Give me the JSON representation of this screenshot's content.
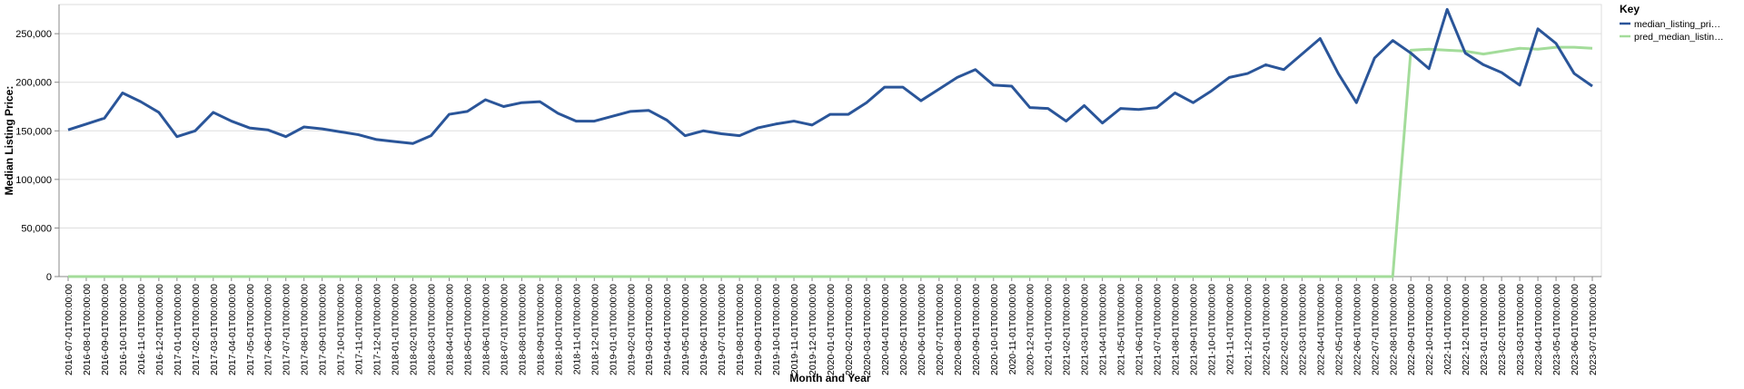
{
  "chart_data": {
    "type": "line",
    "y_label": "Median Listing Price:",
    "x_label": "Month and Year",
    "legend_title": "Key",
    "legend_position": "right",
    "grid": true,
    "categories": [
      "2016-07-01T00:00:00",
      "2016-08-01T00:00:00",
      "2016-09-01T00:00:00",
      "2016-10-01T00:00:00",
      "2016-11-01T00:00:00",
      "2016-12-01T00:00:00",
      "2017-01-01T00:00:00",
      "2017-02-01T00:00:00",
      "2017-03-01T00:00:00",
      "2017-04-01T00:00:00",
      "2017-05-01T00:00:00",
      "2017-06-01T00:00:00",
      "2017-07-01T00:00:00",
      "2017-08-01T00:00:00",
      "2017-09-01T00:00:00",
      "2017-10-01T00:00:00",
      "2017-11-01T00:00:00",
      "2017-12-01T00:00:00",
      "2018-01-01T00:00:00",
      "2018-02-01T00:00:00",
      "2018-03-01T00:00:00",
      "2018-04-01T00:00:00",
      "2018-05-01T00:00:00",
      "2018-06-01T00:00:00",
      "2018-07-01T00:00:00",
      "2018-08-01T00:00:00",
      "2018-09-01T00:00:00",
      "2018-10-01T00:00:00",
      "2018-11-01T00:00:00",
      "2018-12-01T00:00:00",
      "2019-01-01T00:00:00",
      "2019-02-01T00:00:00",
      "2019-03-01T00:00:00",
      "2019-04-01T00:00:00",
      "2019-05-01T00:00:00",
      "2019-06-01T00:00:00",
      "2019-07-01T00:00:00",
      "2019-08-01T00:00:00",
      "2019-09-01T00:00:00",
      "2019-10-01T00:00:00",
      "2019-11-01T00:00:00",
      "2019-12-01T00:00:00",
      "2020-01-01T00:00:00",
      "2020-02-01T00:00:00",
      "2020-03-01T00:00:00",
      "2020-04-01T00:00:00",
      "2020-05-01T00:00:00",
      "2020-06-01T00:00:00",
      "2020-07-01T00:00:00",
      "2020-08-01T00:00:00",
      "2020-09-01T00:00:00",
      "2020-10-01T00:00:00",
      "2020-11-01T00:00:00",
      "2020-12-01T00:00:00",
      "2021-01-01T00:00:00",
      "2021-02-01T00:00:00",
      "2021-03-01T00:00:00",
      "2021-04-01T00:00:00",
      "2021-05-01T00:00:00",
      "2021-06-01T00:00:00",
      "2021-07-01T00:00:00",
      "2021-08-01T00:00:00",
      "2021-09-01T00:00:00",
      "2021-10-01T00:00:00",
      "2021-11-01T00:00:00",
      "2021-12-01T00:00:00",
      "2022-01-01T00:00:00",
      "2022-02-01T00:00:00",
      "2022-03-01T00:00:00",
      "2022-04-01T00:00:00",
      "2022-05-01T00:00:00",
      "2022-06-01T00:00:00",
      "2022-07-01T00:00:00",
      "2022-08-01T00:00:00",
      "2022-09-01T00:00:00",
      "2022-10-01T00:00:00",
      "2022-11-01T00:00:00",
      "2022-12-01T00:00:00",
      "2023-01-01T00:00:00",
      "2023-02-01T00:00:00",
      "2023-03-01T00:00:00",
      "2023-04-01T00:00:00",
      "2023-05-01T00:00:00",
      "2023-06-01T00:00:00",
      "2023-07-01T00:00:00"
    ],
    "series": [
      {
        "name": "median_listing_pri…",
        "color": "#2a5599",
        "values": [
          151000,
          157000,
          163000,
          189000,
          180000,
          169000,
          144000,
          150000,
          169000,
          160000,
          153000,
          151000,
          144000,
          154000,
          152000,
          149000,
          146000,
          141000,
          139000,
          137000,
          145000,
          167000,
          170000,
          182000,
          175000,
          179000,
          180000,
          168000,
          160000,
          160000,
          165000,
          170000,
          171000,
          161000,
          145000,
          150000,
          147000,
          145000,
          153000,
          157000,
          160000,
          156000,
          167000,
          167000,
          179000,
          195000,
          195000,
          181000,
          193000,
          205000,
          213000,
          197000,
          196000,
          174000,
          173000,
          160000,
          176000,
          158000,
          173000,
          172000,
          174000,
          189000,
          179000,
          191000,
          205000,
          209000,
          218000,
          213000,
          229000,
          245000,
          209000,
          179000,
          225000,
          243000,
          230000,
          214000,
          275000,
          230000,
          218000,
          210000,
          197000,
          255000,
          240000,
          209000,
          196000
        ]
      },
      {
        "name": "pred_median_listin…",
        "color": "#a3dc9a",
        "values": [
          0,
          0,
          0,
          0,
          0,
          0,
          0,
          0,
          0,
          0,
          0,
          0,
          0,
          0,
          0,
          0,
          0,
          0,
          0,
          0,
          0,
          0,
          0,
          0,
          0,
          0,
          0,
          0,
          0,
          0,
          0,
          0,
          0,
          0,
          0,
          0,
          0,
          0,
          0,
          0,
          0,
          0,
          0,
          0,
          0,
          0,
          0,
          0,
          0,
          0,
          0,
          0,
          0,
          0,
          0,
          0,
          0,
          0,
          0,
          0,
          0,
          0,
          0,
          0,
          0,
          0,
          0,
          0,
          0,
          0,
          0,
          0,
          0,
          0,
          233000,
          234000,
          233000,
          232000,
          229000,
          232000,
          235000,
          234000,
          236000,
          236000,
          235000
        ]
      }
    ],
    "ylim": [
      0,
      280000
    ],
    "yticks": [
      0,
      {
        "value": 50000,
        "label": "50,000"
      },
      {
        "value": 100000,
        "label": "100,000"
      },
      {
        "value": 150000,
        "label": "150,000"
      },
      {
        "value": 200000,
        "label": "200,000"
      },
      {
        "value": 250000,
        "label": "250,000"
      }
    ]
  }
}
